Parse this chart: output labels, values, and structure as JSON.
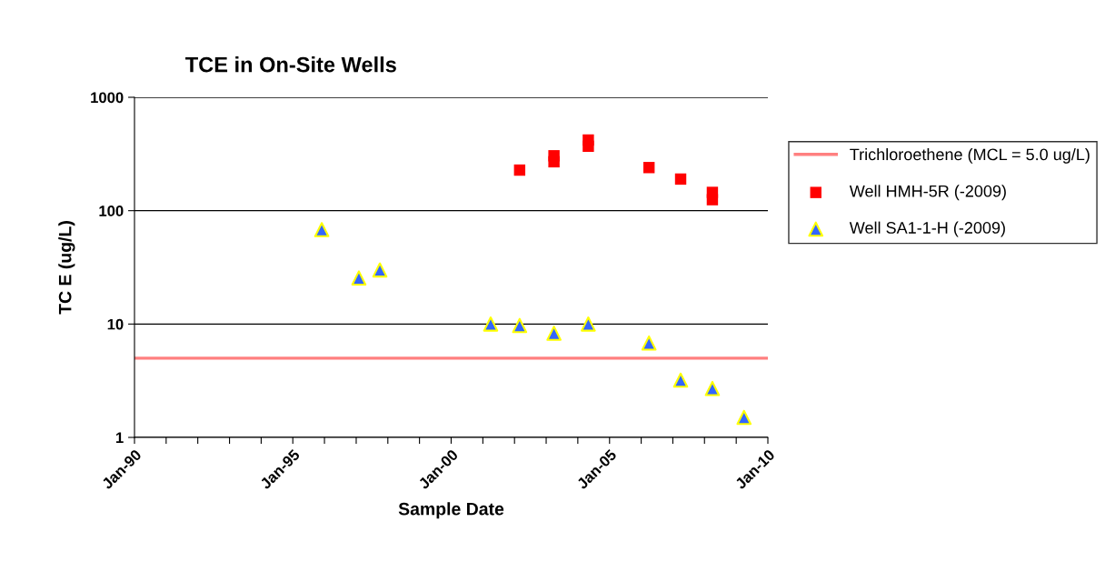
{
  "chart_data": {
    "type": "scatter",
    "title": "TCE in On-Site Wells",
    "xlabel": "Sample Date",
    "ylabel": "TC E (ug/L)",
    "log": "y",
    "grid": "y",
    "legend": "right",
    "xlim": [
      "1990-01",
      "2010-01"
    ],
    "xticks": [
      {
        "value": "1990-01",
        "label": "Jan-90"
      },
      {
        "value": "1991-01",
        "label": null
      },
      {
        "value": "1992-01",
        "label": null
      },
      {
        "value": "1993-01",
        "label": null
      },
      {
        "value": "1994-01",
        "label": null
      },
      {
        "value": "1995-01",
        "label": "Jan-95"
      },
      {
        "value": "1996-01",
        "label": null
      },
      {
        "value": "1997-01",
        "label": null
      },
      {
        "value": "1998-01",
        "label": null
      },
      {
        "value": "1999-01",
        "label": null
      },
      {
        "value": "2000-01",
        "label": "Jan-00"
      },
      {
        "value": "2001-01",
        "label": null
      },
      {
        "value": "2002-01",
        "label": null
      },
      {
        "value": "2003-01",
        "label": null
      },
      {
        "value": "2004-01",
        "label": null
      },
      {
        "value": "2005-01",
        "label": "Jan-05"
      },
      {
        "value": "2006-01",
        "label": null
      },
      {
        "value": "2007-01",
        "label": null
      },
      {
        "value": "2008-01",
        "label": null
      },
      {
        "value": "2009-01",
        "label": null
      },
      {
        "value": "2010-01",
        "label": "Jan-10"
      }
    ],
    "ylim": [
      1,
      1000
    ],
    "yticks": [
      1,
      10,
      100,
      1000
    ],
    "ref_lines": [
      {
        "axis": "y",
        "value": 5,
        "label": "Trichloroethene (MCL = 5.0 ug/L)",
        "color": "#ff8080"
      }
    ],
    "series": [
      {
        "name": "Well HMH-5R (-2009)",
        "color": "#ff0000",
        "marker": "square",
        "x": [
          "2002-03",
          "2003-04",
          "2003-04",
          "2004-05",
          "2004-05",
          "2006-04",
          "2007-04",
          "2008-04",
          "2008-04"
        ],
        "values": [
          228,
          270,
          305,
          370,
          420,
          240,
          190,
          125,
          145
        ]
      },
      {
        "name": "Well SA1-1-H (-2009)",
        "color": "#3366ff",
        "marker": "triangle",
        "x": [
          "1995-12",
          "1997-02",
          "1997-10",
          "2001-04",
          "2002-03",
          "2003-04",
          "2004-05",
          "2006-04",
          "2007-04",
          "2008-04",
          "2009-04"
        ],
        "values": [
          68,
          25.5,
          30,
          10,
          9.7,
          8.3,
          10,
          6.8,
          3.2,
          2.7,
          1.5
        ]
      }
    ]
  }
}
